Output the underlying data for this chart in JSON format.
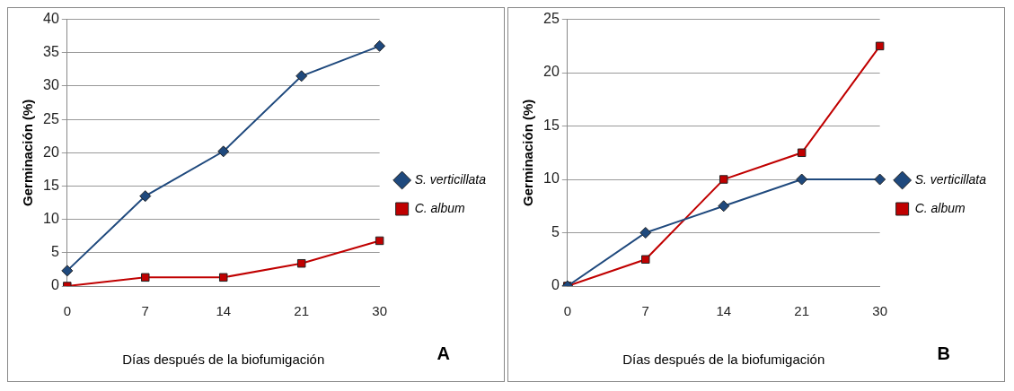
{
  "chart_data": [
    {
      "type": "line",
      "xlabel": "Días después de la biofumigación",
      "ylabel": "Germinación (%)",
      "categories": [
        "0",
        "7",
        "14",
        "21",
        "30"
      ],
      "ylim": [
        0,
        40
      ],
      "yticks": [
        0,
        5,
        10,
        15,
        20,
        25,
        30,
        35,
        40
      ],
      "grid": "y",
      "legend": "right",
      "annotations": [
        "A"
      ],
      "series": [
        {
          "name": "S. verticillata",
          "color": "#1f497d",
          "marker": "diamond",
          "values": [
            2.3,
            13.5,
            20.2,
            31.5,
            36
          ]
        },
        {
          "name": "C. album",
          "color": "#c00000",
          "marker": "square",
          "values": [
            0,
            1.3,
            1.3,
            3.4,
            6.8
          ]
        }
      ]
    },
    {
      "type": "line",
      "xlabel": "Días después de la biofumigación",
      "ylabel": "Germinación (%)",
      "categories": [
        "0",
        "7",
        "14",
        "21",
        "30"
      ],
      "ylim": [
        0,
        25
      ],
      "yticks": [
        0,
        5,
        10,
        15,
        20,
        25
      ],
      "grid": "y",
      "legend": "right",
      "annotations": [
        "B"
      ],
      "series": [
        {
          "name": "S. verticillata",
          "color": "#1f497d",
          "marker": "diamond",
          "values": [
            0,
            5,
            7.5,
            10,
            10
          ]
        },
        {
          "name": "C. album",
          "color": "#c00000",
          "marker": "square",
          "values": [
            0,
            2.5,
            10,
            12.5,
            22.5
          ]
        }
      ]
    }
  ]
}
